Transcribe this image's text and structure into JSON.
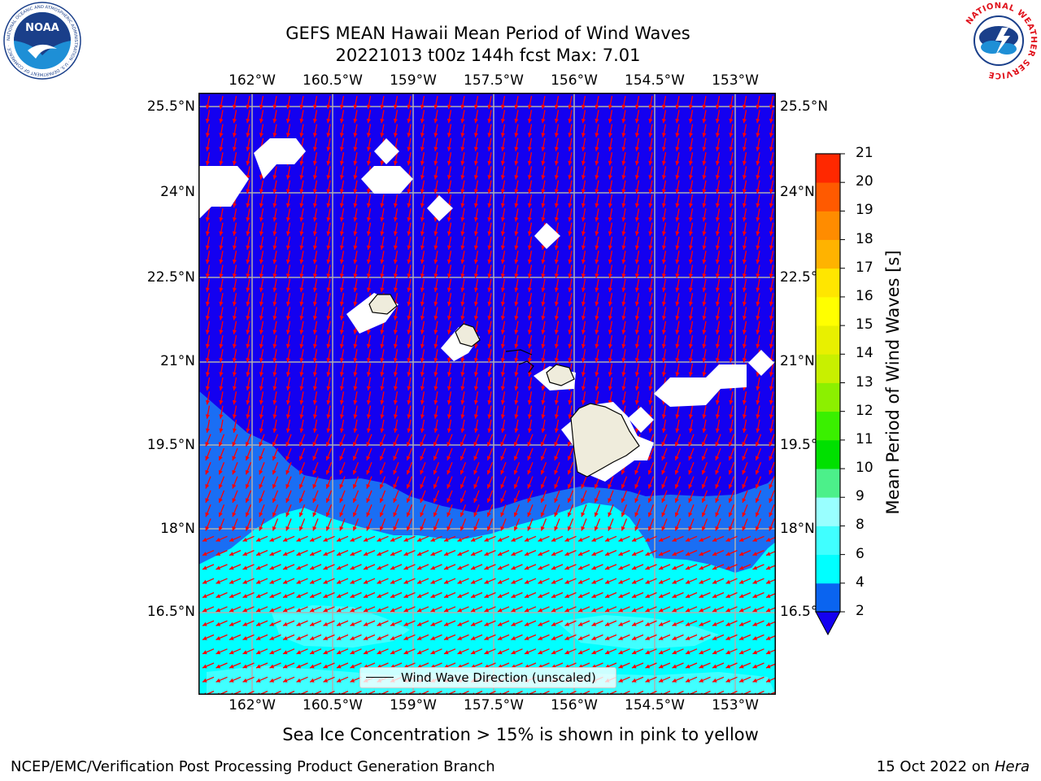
{
  "title": {
    "line1": "GEFS MEAN Hawaii Mean Period of Wind Waves",
    "line2": "20221013 t00z 144h fcst   Max: 7.01"
  },
  "map": {
    "lon_ticks": [
      "162°W",
      "160.5°W",
      "159°W",
      "157.5°W",
      "156°W",
      "154.5°W",
      "153°W"
    ],
    "lat_ticks": [
      "25.5°N",
      "24°N",
      "22.5°N",
      "21°N",
      "19.5°N",
      "18°N",
      "16.5°N"
    ],
    "legend_label": "Wind Wave Direction (unscaled)",
    "colors": {
      "ocean_low": "#1400f0",
      "band_2_4": "#1a6ef4",
      "band_4_6": "#00ffff",
      "band_6_8": "#40ffff",
      "land": "#efecdc",
      "ice": "#ffffff",
      "arrow": "#ff0000",
      "grid": "#b0b0b0"
    }
  },
  "colorbar": {
    "label": "Mean Period of Wind Waves [s]",
    "ticks": [
      "2",
      "4",
      "6",
      "8",
      "9",
      "10",
      "11",
      "12",
      "13",
      "14",
      "15",
      "16",
      "17",
      "18",
      "19",
      "20",
      "21"
    ],
    "colors": [
      "#0a64f0",
      "#00ffff",
      "#40ffff",
      "#99ffff",
      "#4cf08a",
      "#00e000",
      "#3af000",
      "#8cf000",
      "#c8f000",
      "#e8f000",
      "#ffff00",
      "#ffe600",
      "#ffb300",
      "#ff8c00",
      "#ff5a00",
      "#ff2800"
    ]
  },
  "note": "Sea Ice Concentration > 15% is shown in pink to yellow",
  "footer": {
    "left": "NCEP/EMC/Verification Post Processing Product Generation Branch",
    "right_date": "15 Oct 2022 on ",
    "right_machine": "Hera"
  },
  "logos": {
    "noaa_text": "NOAA",
    "noaa_ring": "NATIONAL OCEANIC AND ATMOSPHERIC ADMINISTRATION · U.S. DEPARTMENT OF COMMERCE ·",
    "nws_ring": "NATIONAL WEATHER SERVICE"
  }
}
